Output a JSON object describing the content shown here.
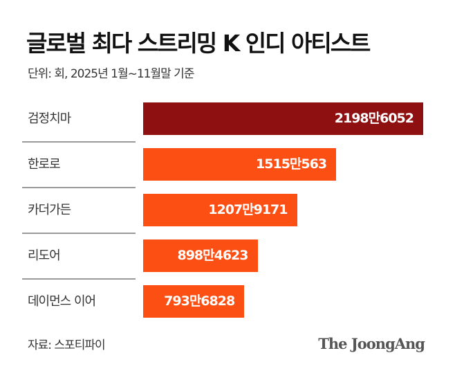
{
  "chart_data": {
    "type": "bar",
    "orientation": "horizontal",
    "title": "글로벌 최다 스트리밍 K 인디 아티스트",
    "subtitle": "단위: 회, 2025년 1월~11월말 기준",
    "categories": [
      "검정치마",
      "한로로",
      "카더가든",
      "리도어",
      "데이먼스 이어"
    ],
    "values": [
      21986052,
      15150563,
      12079171,
      8984623,
      7936828
    ],
    "data_labels": [
      "2198만6052",
      "1515만563",
      "1207만9171",
      "898만4623",
      "793만6828"
    ],
    "bar_colors": [
      "#8f1011",
      "#fc4f14",
      "#fc4f14",
      "#fc4f14",
      "#fc4f14"
    ],
    "xlim": [
      0,
      21986052
    ],
    "grid": false,
    "legend": "none"
  },
  "footer": {
    "source": "자료: 스포티파이",
    "logo": "The JoongAng"
  }
}
